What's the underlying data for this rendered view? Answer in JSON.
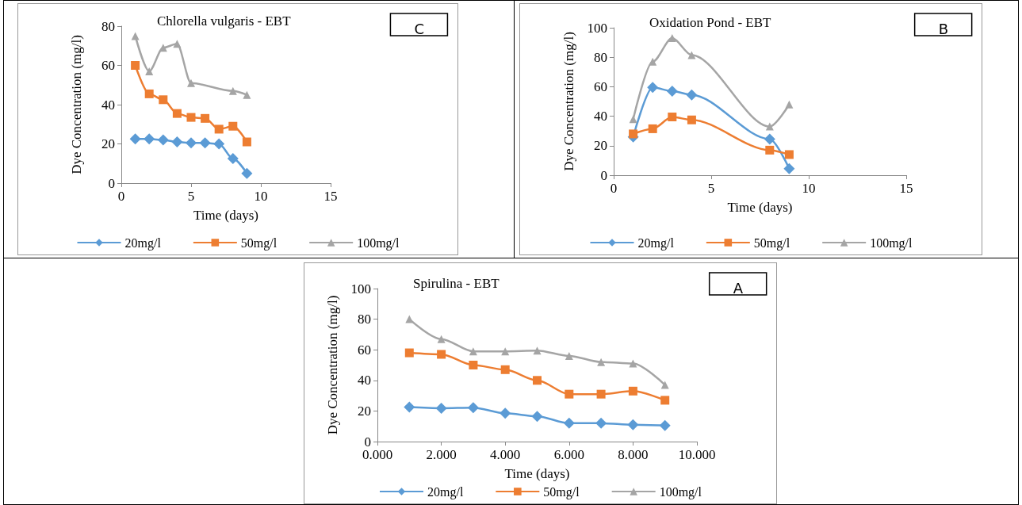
{
  "chart_data": [
    {
      "type": "line",
      "title": "Chlorella vulgaris - EBT",
      "xlabel": "Time (days)",
      "ylabel": "Dye Concentration (mg/l)",
      "annotations": [
        "C"
      ],
      "xlim": [
        0,
        15
      ],
      "xticks": [
        0,
        5,
        10,
        15
      ],
      "ylim": [
        0,
        80
      ],
      "yticks": [
        0,
        20,
        40,
        60,
        80
      ],
      "grid": false,
      "legend": "bottom",
      "line_style": "solid",
      "series": [
        {
          "name": "20mg/l",
          "color": "#5b9bd5",
          "marker": "diamond",
          "x": [
            1,
            2,
            3,
            4,
            5,
            6,
            7,
            8,
            9
          ],
          "values": [
            22.5,
            22.5,
            22,
            21,
            20.5,
            20.5,
            20,
            12.5,
            5
          ]
        },
        {
          "name": "50mg/l",
          "color": "#ed7d31",
          "marker": "square",
          "x": [
            1,
            2,
            3,
            4,
            5,
            6,
            7,
            8,
            9
          ],
          "values": [
            60,
            45.5,
            42.5,
            35.5,
            33.5,
            33,
            27.5,
            29,
            21
          ]
        },
        {
          "name": "100mg/l",
          "color": "#a5a5a5",
          "marker": "triangle",
          "x": [
            1,
            2,
            3,
            4,
            5,
            8,
            9
          ],
          "values": [
            75,
            57,
            69,
            71,
            51,
            47,
            45
          ]
        }
      ]
    },
    {
      "type": "line",
      "title": "Oxidation Pond - EBT",
      "xlabel": "Time (days)",
      "ylabel": "Dye Concentration (mg/l)",
      "annotations": [
        "B"
      ],
      "xlim": [
        0,
        15
      ],
      "xticks": [
        0,
        5,
        10,
        15
      ],
      "ylim": [
        0,
        100
      ],
      "yticks": [
        0,
        20,
        40,
        60,
        80,
        100
      ],
      "grid": false,
      "legend": "bottom",
      "line_style": "solid",
      "series": [
        {
          "name": "20mg/l",
          "color": "#5b9bd5",
          "marker": "diamond",
          "x": [
            1,
            2,
            3,
            4,
            8,
            9
          ],
          "values": [
            26,
            59.5,
            57,
            54.5,
            24.5,
            4.5
          ]
        },
        {
          "name": "50mg/l",
          "color": "#ed7d31",
          "marker": "square",
          "x": [
            1,
            2,
            3,
            4,
            8,
            9
          ],
          "values": [
            28,
            31.5,
            39.5,
            37.5,
            17,
            14
          ]
        },
        {
          "name": "100mg/l",
          "color": "#a5a5a5",
          "marker": "triangle",
          "x": [
            1,
            2,
            3,
            4,
            8,
            9
          ],
          "values": [
            38,
            77,
            93,
            81.5,
            33,
            48
          ]
        }
      ]
    },
    {
      "type": "line",
      "title": "Spirulina - EBT",
      "xlabel": "Time (days)",
      "ylabel": "Dye Concentration (mg/l)",
      "annotations": [
        "A"
      ],
      "xlim": [
        0,
        10
      ],
      "xticks": [
        {
          "value": 0,
          "label": "0.000"
        },
        {
          "value": 2,
          "label": "2.000"
        },
        {
          "value": 4,
          "label": "4.000"
        },
        {
          "value": 6,
          "label": "6.000"
        },
        {
          "value": 8,
          "label": "8.000"
        },
        {
          "value": 10,
          "label": "10.000"
        }
      ],
      "ylim": [
        0,
        100
      ],
      "yticks": [
        0,
        20,
        40,
        60,
        80,
        100
      ],
      "grid": false,
      "legend": "bottom",
      "line_style": "solid",
      "series": [
        {
          "name": "20mg/l",
          "color": "#5b9bd5",
          "marker": "diamond",
          "x": [
            1,
            2,
            3,
            4,
            5,
            6,
            7,
            8,
            9
          ],
          "values": [
            22.5,
            21.8,
            22.2,
            18.5,
            16.5,
            12,
            12,
            11,
            10.5
          ]
        },
        {
          "name": "50mg/l",
          "color": "#ed7d31",
          "marker": "square",
          "x": [
            1,
            2,
            3,
            4,
            5,
            6,
            7,
            8,
            9
          ],
          "values": [
            58,
            57,
            50,
            47,
            40,
            31,
            31,
            33,
            27
          ]
        },
        {
          "name": "100mg/l",
          "color": "#a5a5a5",
          "marker": "triangle",
          "x": [
            1,
            2,
            3,
            4,
            5,
            6,
            7,
            8,
            9
          ],
          "values": [
            80,
            67,
            59,
            59,
            59.5,
            56,
            52,
            51,
            37
          ]
        }
      ]
    }
  ]
}
